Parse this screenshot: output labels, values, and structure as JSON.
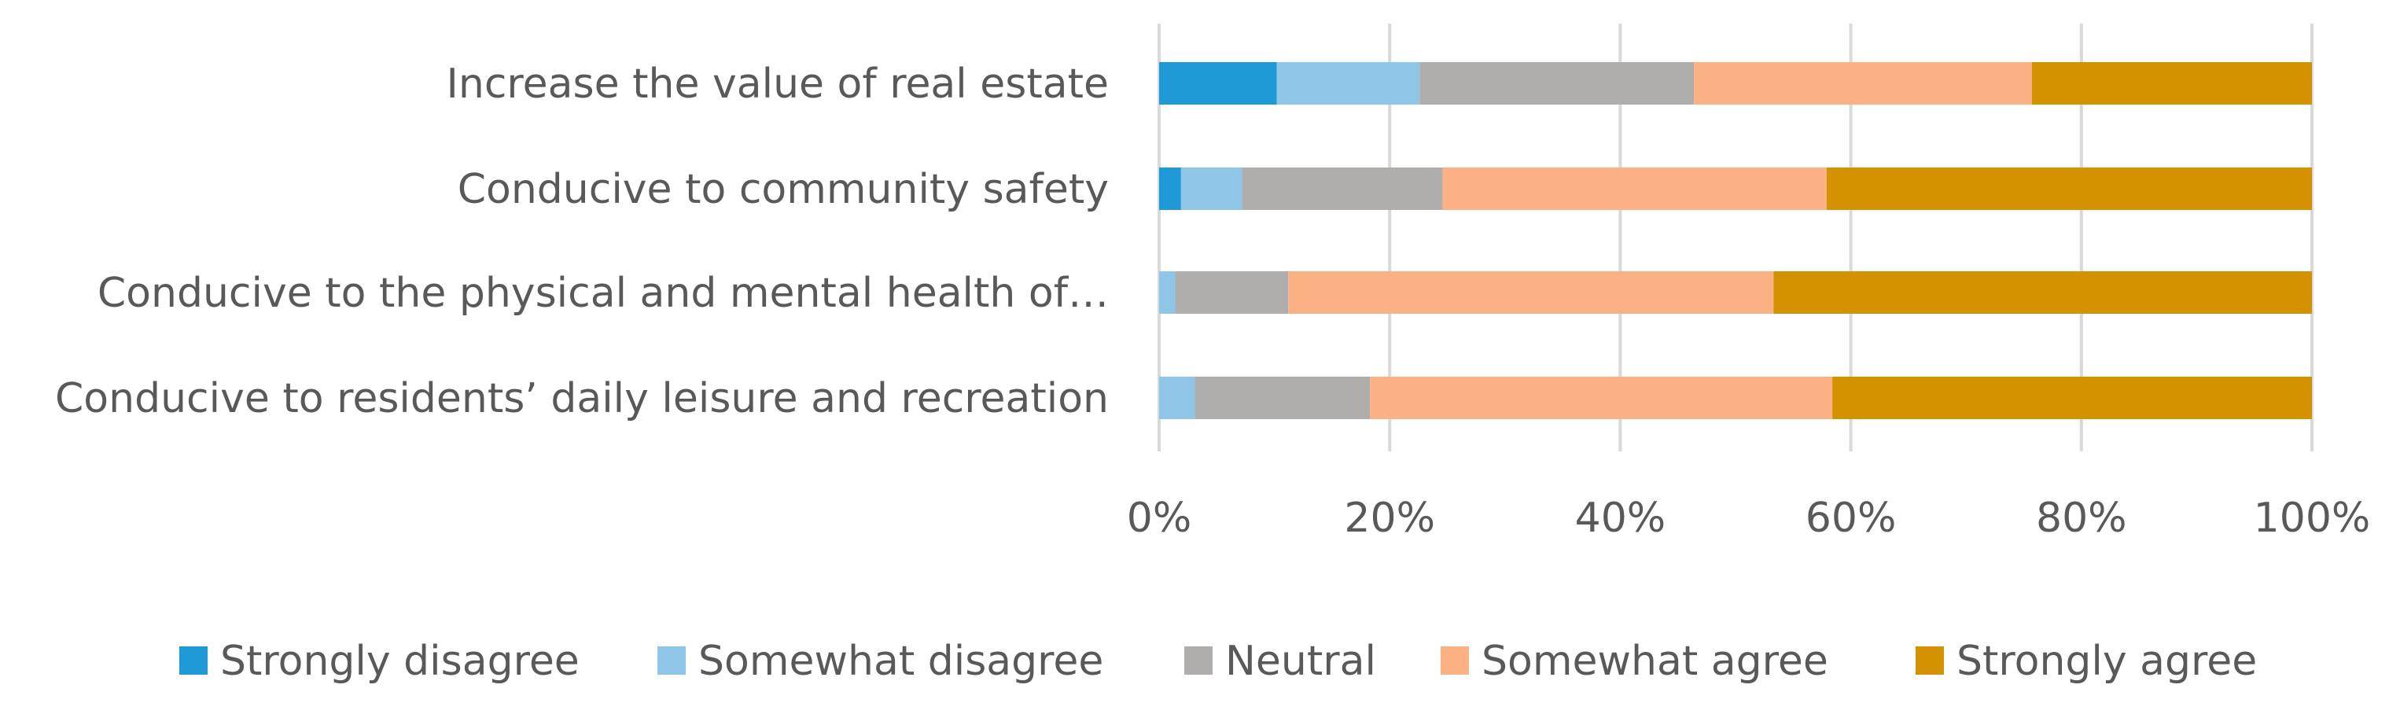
{
  "chart_data": {
    "type": "bar",
    "orientation": "horizontal",
    "stacked": "percent",
    "categories": [
      "Increase the value of real estate",
      "Conducive to community safety",
      "Conducive to the physical and mental health of…",
      "Conducive to residents’ daily leisure and recreation"
    ],
    "series": [
      {
        "name": "Strongly disagree",
        "color": "#1f9ad6",
        "values": [
          10.2,
          1.9,
          0.0,
          0.0
        ]
      },
      {
        "name": "Somewhat disagree",
        "color": "#8fc6e8",
        "values": [
          12.4,
          5.3,
          1.4,
          3.1
        ]
      },
      {
        "name": "Neutral",
        "color": "#b0adad",
        "values": [
          23.8,
          17.4,
          9.8,
          15.2
        ]
      },
      {
        "name": "Somewhat agree",
        "color": "#fcb185",
        "values": [
          29.3,
          33.3,
          42.1,
          40.1
        ]
      },
      {
        "name": "Strongly agree",
        "color": "#d49200",
        "values": [
          24.3,
          42.1,
          46.7,
          41.6
        ]
      }
    ],
    "x_ticks": [
      "0%",
      "20%",
      "40%",
      "60%",
      "80%",
      "100%"
    ],
    "xlim": [
      0,
      100
    ],
    "grid": true,
    "legend_position": "bottom"
  }
}
